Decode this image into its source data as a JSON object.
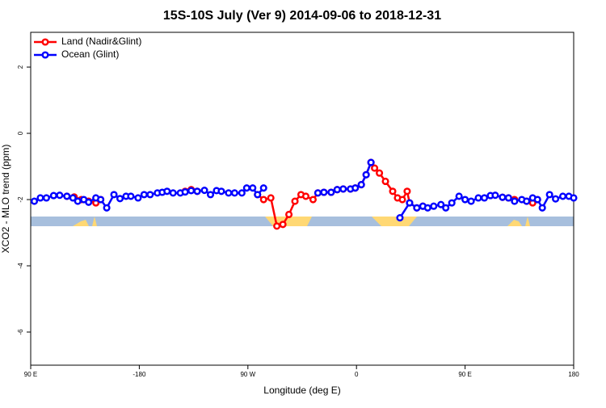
{
  "chart_data": {
    "type": "line",
    "title": "15S-10S July (Ver 9)   2014-09-06 to 2018-12-31",
    "x_label": "Longitude (deg E)",
    "y_label": "XCO2 - MLO trend (ppm)",
    "xlim": [
      -270,
      180
    ],
    "ylim": [
      -7,
      3.05
    ],
    "xticks": [
      {
        "value": -270,
        "label": "90 E"
      },
      -180,
      {
        "value": -90,
        "label": "90 W"
      },
      0,
      {
        "value": 90,
        "label": "90 E"
      },
      180
    ],
    "yticks": [
      -6,
      -4,
      -2,
      0,
      2
    ],
    "legend": "top-left",
    "series": [
      {
        "name": "Land (Nadir&Glint)",
        "color": "#ff0000",
        "x": [
          -240,
          -234,
          -228,
          -222,
          -216,
          -212,
          -176,
          -142,
          -137,
          -132,
          -100,
          -82,
          -77,
          -71,
          -66,
          -61,
          -56,
          -51,
          -46,
          -42,
          -36,
          -32,
          -27,
          -21,
          -16,
          -11,
          -5,
          -1,
          4,
          8,
          12,
          15,
          19,
          24,
          30,
          34,
          38,
          42,
          44,
          50,
          55,
          90,
          121,
          126,
          131,
          136,
          141,
          146,
          150
        ],
        "values": [
          -1.9,
          -1.92,
          -2.0,
          -2.05,
          -2.1,
          -2.0,
          null,
          -1.75,
          -1.7,
          -1.75,
          null,
          -1.85,
          -2.0,
          -1.95,
          -2.8,
          -2.75,
          -2.45,
          -2.05,
          -1.85,
          -1.9,
          -2.0,
          -1.8,
          -1.78,
          -1.78,
          -1.7,
          -1.68,
          -1.68,
          -1.65,
          -1.55,
          -1.25,
          -0.88,
          -1.05,
          -1.2,
          -1.45,
          -1.75,
          -1.95,
          -2.0,
          -1.75,
          -2.1,
          -2.25,
          -2.2,
          null,
          -1.93,
          -1.95,
          -2.0,
          null,
          -2.05,
          -2.1,
          -2.0
        ]
      },
      {
        "name": "Ocean (Glint)",
        "color": "#0000ff",
        "x": [
          -267,
          -262,
          -257,
          -251,
          -246,
          -240,
          -235,
          -231,
          -226,
          -222,
          -216,
          -212,
          -207,
          -201,
          -196,
          -191,
          -187,
          -181,
          -176,
          -171,
          -165,
          -161,
          -157,
          -152,
          -146,
          -142,
          -137,
          -132,
          -126,
          -121,
          -116,
          -112,
          -106,
          -101,
          -95,
          -91,
          -86,
          -82,
          -77,
          -72,
          -32,
          -27,
          -21,
          -16,
          -11,
          -5,
          -1,
          4,
          8,
          12,
          20,
          36,
          44,
          50,
          55,
          59,
          64,
          70,
          74,
          79,
          85,
          90,
          95,
          101,
          106,
          111,
          115,
          121,
          126,
          131,
          137,
          141,
          146,
          150,
          154,
          160,
          165,
          171,
          176,
          180
        ],
        "values": [
          -2.05,
          -1.95,
          -1.95,
          -1.88,
          -1.87,
          -1.9,
          -1.95,
          -2.05,
          -2.0,
          -2.08,
          -1.95,
          -2.0,
          -2.25,
          -1.85,
          -1.97,
          -1.9,
          -1.9,
          -1.95,
          -1.85,
          -1.85,
          -1.8,
          -1.78,
          -1.75,
          -1.8,
          -1.8,
          -1.77,
          -1.73,
          -1.75,
          -1.72,
          -1.85,
          -1.73,
          -1.75,
          -1.8,
          -1.8,
          -1.8,
          -1.65,
          -1.65,
          -1.85,
          -1.65,
          null,
          -1.8,
          -1.78,
          -1.78,
          -1.7,
          -1.68,
          -1.68,
          -1.65,
          -1.55,
          -1.25,
          -0.88,
          null,
          -2.55,
          -2.1,
          -2.25,
          -2.2,
          -2.25,
          -2.2,
          -2.15,
          -2.25,
          -2.1,
          -1.9,
          -2.0,
          -2.05,
          -1.95,
          -1.95,
          -1.88,
          -1.87,
          -1.93,
          -1.95,
          -2.05,
          -2.0,
          -2.05,
          -1.95,
          -2.0,
          -2.25,
          -1.85,
          -1.98,
          -1.9,
          -1.9,
          -1.95
        ]
      }
    ]
  }
}
